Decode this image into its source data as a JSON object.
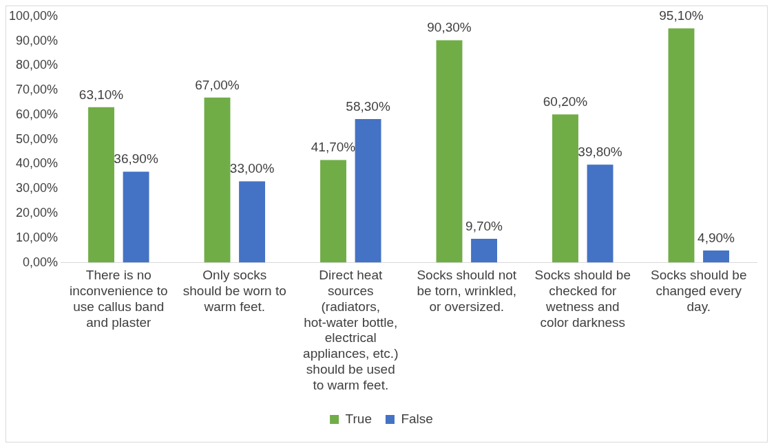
{
  "chart_data": {
    "type": "bar",
    "categories": [
      "There is no inconvenience to use callus band and plaster",
      "Only socks should be worn to warm feet.",
      "Direct heat sources (radiators, hot-water bottle, electrical appliances, etc.) should be used to warm feet.",
      "Socks should not be torn, wrinkled, or oversized.",
      "Socks should be checked for wetness and color darkness",
      "Socks should be changed every day."
    ],
    "series": [
      {
        "name": "True",
        "color": "#70ad47",
        "values": [
          63.1,
          67.0,
          41.7,
          90.3,
          60.2,
          95.1
        ],
        "value_labels": [
          "63,10%",
          "67,00%",
          "41,70%",
          "90,30%",
          "60,20%",
          "95,10%"
        ]
      },
      {
        "name": "False",
        "color": "#4472c4",
        "values": [
          36.9,
          33.0,
          58.3,
          9.7,
          39.8,
          4.9
        ],
        "value_labels": [
          "36,90%",
          "33,00%",
          "58,30%",
          "9,70%",
          "39,80%",
          "4,90%"
        ]
      }
    ],
    "ylim": [
      0,
      100
    ],
    "yticks": [
      {
        "value": 0,
        "label": "0,00%"
      },
      {
        "value": 10,
        "label": "10,00%"
      },
      {
        "value": 20,
        "label": "20,00%"
      },
      {
        "value": 30,
        "label": "30,00%"
      },
      {
        "value": 40,
        "label": "40,00%"
      },
      {
        "value": 50,
        "label": "50,00%"
      },
      {
        "value": 60,
        "label": "60,00%"
      },
      {
        "value": 70,
        "label": "70,00%"
      },
      {
        "value": 80,
        "label": "80,00%"
      },
      {
        "value": 90,
        "label": "90,00%"
      },
      {
        "value": 100,
        "label": "100,00%"
      }
    ],
    "legend": "bottom"
  }
}
